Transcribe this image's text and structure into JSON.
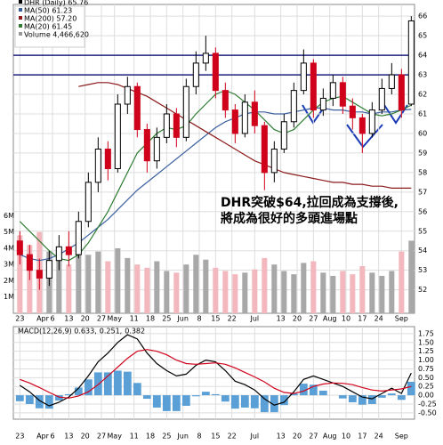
{
  "chart_data": [
    {
      "type": "candlestick",
      "legend": [
        {
          "text": "DHR (Daily) 65.76",
          "color": "#000000"
        },
        {
          "text": "MA(50) 61.23",
          "color": "#3a5fa0"
        },
        {
          "text": "MA(200) 57.20",
          "color": "#8b1a1a"
        },
        {
          "text": "MA(20) 61.45",
          "color": "#2e7d32"
        },
        {
          "text": "Volume 4,466,620",
          "color": "#999999"
        }
      ],
      "annotation": [
        "DHR突破$64,拉回成為支撐後,",
        "將成為很好的多頭進場點"
      ],
      "annotation_color": "#1a3bb5",
      "x": [
        0,
        3,
        6,
        9,
        12,
        15,
        18,
        21,
        24,
        27,
        30,
        33,
        36,
        39,
        42,
        45,
        48,
        51,
        54,
        57,
        60,
        63,
        66,
        69,
        72,
        75,
        78,
        81,
        84,
        87,
        90,
        93,
        96,
        99,
        102,
        105,
        108,
        111,
        114,
        117,
        120
      ],
      "open": [
        54.5,
        53.8,
        53,
        52.6,
        53.5,
        54.2,
        53.8,
        55.5,
        57.5,
        59.2,
        58.2,
        61.5,
        62.4,
        60.2,
        58.6,
        59.8,
        61,
        59.8,
        62.4,
        63.6,
        64.1,
        62.2,
        61.2,
        60,
        61.6,
        60.4,
        58,
        59.2,
        60.6,
        62.2,
        63.6,
        61.2,
        61.8,
        62.6,
        61.4,
        60.8,
        60,
        61.2,
        62.3,
        63,
        61.5
      ],
      "high": [
        55,
        54.3,
        53.6,
        54,
        54.8,
        55,
        56,
        58,
        59.8,
        59.6,
        62,
        62.9,
        62.6,
        60.5,
        60.3,
        61.5,
        61.3,
        62.8,
        64.2,
        65,
        64.4,
        62.6,
        61.5,
        62,
        62.2,
        60.6,
        59.6,
        61,
        62.6,
        64.3,
        63.8,
        62.3,
        63,
        62.9,
        61.8,
        61,
        61.6,
        62.8,
        63.6,
        63.3,
        66
      ],
      "low": [
        53.3,
        52.5,
        52,
        52.2,
        53,
        53.2,
        53.6,
        55.2,
        57,
        57.6,
        58,
        61,
        59.8,
        58,
        58.2,
        59.5,
        59.3,
        59.6,
        62,
        63.2,
        61.8,
        60.8,
        59.5,
        59.8,
        60,
        57.1,
        57.5,
        59,
        60.3,
        62,
        60.8,
        60.9,
        61.4,
        61,
        60.2,
        59,
        59.8,
        61,
        62,
        60.8,
        61.4
      ],
      "close": [
        53.8,
        53,
        52.6,
        53.5,
        54.2,
        53.8,
        55.5,
        57.5,
        59.2,
        58.2,
        61.5,
        62.4,
        60.2,
        58.6,
        59.8,
        61,
        59.8,
        62.4,
        63.6,
        64.1,
        62.2,
        61.2,
        60,
        61.6,
        60.4,
        58,
        59.2,
        60.6,
        62.2,
        63.6,
        61.2,
        61.8,
        62.6,
        61.4,
        60.8,
        60,
        61.2,
        62.3,
        63,
        61.2,
        65.76
      ],
      "volume": [
        4800000,
        4200000,
        5000000,
        3800000,
        3500000,
        3000000,
        4500000,
        3600000,
        3800000,
        3200000,
        4000000,
        3400000,
        3000000,
        2800000,
        3200000,
        2600000,
        2500000,
        3000000,
        3600000,
        3300000,
        2800000,
        2600000,
        2400000,
        2500000,
        2700000,
        3400000,
        3000000,
        2600000,
        2400000,
        3100000,
        3200000,
        2500000,
        2300000,
        2600000,
        2400000,
        2900000,
        2500000,
        2300000,
        2600000,
        3800000,
        4466620
      ],
      "series": [
        {
          "name": "MA(50)",
          "color": "#3a5fa0",
          "values": [
            53.8,
            53.6,
            53.5,
            53.6,
            53.8,
            54.1,
            54.4,
            54.8,
            55.2,
            55.6,
            56.1,
            56.6,
            57.1,
            57.5,
            57.9,
            58.3,
            58.7,
            59.1,
            59.5,
            59.9,
            60.3,
            60.6,
            60.8,
            61.0,
            61.1,
            61.1,
            61.0,
            61.0,
            61.1,
            61.2,
            61.3,
            61.3,
            61.2,
            61.2,
            61.1,
            61.1,
            61.0,
            61.1,
            61.1,
            61.2,
            61.23
          ]
        },
        {
          "name": "MA(200)",
          "color": "#8b1a1a",
          "values": [
            null,
            null,
            null,
            null,
            null,
            null,
            62.4,
            62.5,
            62.6,
            62.6,
            62.5,
            62.3,
            62.1,
            61.9,
            61.6,
            61.3,
            61.0,
            60.7,
            60.4,
            60.1,
            59.8,
            59.5,
            59.2,
            58.9,
            58.6,
            58.4,
            58.2,
            58.0,
            57.9,
            57.8,
            57.7,
            57.6,
            57.5,
            57.5,
            57.4,
            57.4,
            57.3,
            57.3,
            57.2,
            57.2,
            57.2
          ]
        },
        {
          "name": "MA(20)",
          "color": "#2e7d32",
          "values": [
            55.5,
            55,
            54.5,
            54,
            53.6,
            53.5,
            53.8,
            54.4,
            55.2,
            56,
            57,
            58,
            59,
            59.5,
            60,
            60.3,
            60.2,
            60.4,
            61,
            61.5,
            62,
            62.2,
            62,
            61.6,
            61.2,
            60.7,
            60.2,
            60,
            60.2,
            60.7,
            61.2,
            61.6,
            61.8,
            61.9,
            61.6,
            61.3,
            61,
            60.9,
            61,
            61.2,
            61.45
          ]
        }
      ],
      "up_color": "#000000",
      "down_color": "#d0021b",
      "volume_up_color": "#a8a8a8",
      "volume_down_color": "#f2b8bd",
      "hlines": [
        64,
        63
      ],
      "hline_color": "#1a237e",
      "xlim": [
        -2,
        121
      ],
      "xticks": [
        {
          "value": 0,
          "label": "23"
        },
        {
          "value": 7,
          "label": "Apr"
        },
        {
          "value": 10,
          "label": "6"
        },
        {
          "value": 15,
          "label": "13"
        },
        {
          "value": 20,
          "label": "20"
        },
        {
          "value": 25,
          "label": "27"
        },
        {
          "value": 29,
          "label": "May"
        },
        {
          "value": 35,
          "label": "11"
        },
        {
          "value": 40,
          "label": "18"
        },
        {
          "value": 45,
          "label": "25"
        },
        {
          "value": 50,
          "label": "Jun"
        },
        {
          "value": 55,
          "label": "8"
        },
        {
          "value": 60,
          "label": "15"
        },
        {
          "value": 65,
          "label": "22"
        },
        {
          "value": 72,
          "label": "Jul"
        },
        {
          "value": 80,
          "label": "13"
        },
        {
          "value": 85,
          "label": "20"
        },
        {
          "value": 90,
          "label": "27"
        },
        {
          "value": 95,
          "label": "Aug"
        },
        {
          "value": 100,
          "label": "10"
        },
        {
          "value": 105,
          "label": "17"
        },
        {
          "value": 110,
          "label": "24"
        },
        {
          "value": 117,
          "label": "Sep"
        }
      ],
      "ylim": [
        50.8,
        66.6
      ],
      "yticks": [
        52,
        53,
        54,
        55,
        56,
        57,
        58,
        59,
        60,
        61,
        62,
        63,
        64,
        65,
        66
      ],
      "volume_ylim": [
        0,
        19000000
      ],
      "volume_ticks": [
        {
          "value": 1000000,
          "label": "1M"
        },
        {
          "value": 2000000,
          "label": "2M"
        },
        {
          "value": 3000000,
          "label": "3M"
        },
        {
          "value": 4000000,
          "label": "4M"
        },
        {
          "value": 5000000,
          "label": "5M"
        },
        {
          "value": 6000000,
          "label": "6M"
        }
      ],
      "grid": true
    },
    {
      "type": "macd",
      "legend": [
        {
          "text": "MACD(12,26,9) 0.633,",
          "color": "#000000"
        },
        {
          "text": "0.251,",
          "color": "#d0021b"
        },
        {
          "text": "0.382",
          "color": "#1e73be"
        }
      ],
      "x": [
        0,
        3,
        6,
        9,
        12,
        15,
        18,
        21,
        24,
        27,
        30,
        33,
        36,
        39,
        42,
        45,
        48,
        51,
        54,
        57,
        60,
        63,
        66,
        69,
        72,
        75,
        78,
        81,
        84,
        87,
        90,
        93,
        96,
        99,
        102,
        105,
        108,
        111,
        114,
        117,
        120
      ],
      "series": [
        {
          "name": "MACD",
          "color": "#000000",
          "values": [
            0.28,
            0.1,
            -0.15,
            -0.3,
            -0.2,
            -0.05,
            0.2,
            0.55,
            0.95,
            1.2,
            1.5,
            1.72,
            1.6,
            1.2,
            0.9,
            0.7,
            0.55,
            0.6,
            0.85,
            1.0,
            0.95,
            0.7,
            0.4,
            0.3,
            0.15,
            -0.1,
            -0.28,
            -0.2,
            0.1,
            0.45,
            0.55,
            0.45,
            0.35,
            0.25,
            0.1,
            -0.05,
            -0.1,
            0.05,
            0.2,
            0.05,
            0.633
          ]
        },
        {
          "name": "Signal",
          "color": "#d0021b",
          "values": [
            0.45,
            0.35,
            0.22,
            0.08,
            -0.05,
            -0.08,
            -0.02,
            0.1,
            0.3,
            0.55,
            0.8,
            1.05,
            1.25,
            1.3,
            1.25,
            1.15,
            1.0,
            0.9,
            0.88,
            0.9,
            0.92,
            0.88,
            0.78,
            0.65,
            0.52,
            0.38,
            0.2,
            0.08,
            0.05,
            0.12,
            0.25,
            0.32,
            0.35,
            0.34,
            0.3,
            0.22,
            0.15,
            0.12,
            0.15,
            0.18,
            0.251
          ]
        }
      ],
      "histogram": [
        -0.17,
        -0.25,
        -0.37,
        -0.38,
        -0.15,
        0.03,
        0.22,
        0.45,
        0.65,
        0.65,
        0.7,
        0.67,
        0.35,
        -0.1,
        -0.35,
        -0.45,
        -0.45,
        -0.3,
        -0.03,
        0.1,
        0.03,
        -0.18,
        -0.38,
        -0.35,
        -0.37,
        -0.48,
        -0.48,
        -0.28,
        0.05,
        0.33,
        0.3,
        0.13,
        0,
        -0.09,
        -0.2,
        -0.27,
        -0.25,
        -0.07,
        0.05,
        -0.13,
        0.382
      ],
      "histogram_color": "#5aa0d6",
      "xlim": [
        -2,
        121
      ],
      "xticks": [
        {
          "value": 0,
          "label": "23"
        },
        {
          "value": 7,
          "label": "Apr"
        },
        {
          "value": 10,
          "label": "6"
        },
        {
          "value": 15,
          "label": "13"
        },
        {
          "value": 20,
          "label": "20"
        },
        {
          "value": 25,
          "label": "27"
        },
        {
          "value": 29,
          "label": "May"
        },
        {
          "value": 35,
          "label": "11"
        },
        {
          "value": 40,
          "label": "18"
        },
        {
          "value": 45,
          "label": "25"
        },
        {
          "value": 50,
          "label": "Jun"
        },
        {
          "value": 55,
          "label": "8"
        },
        {
          "value": 60,
          "label": "15"
        },
        {
          "value": 65,
          "label": "22"
        },
        {
          "value": 72,
          "label": "Jul"
        },
        {
          "value": 80,
          "label": "13"
        },
        {
          "value": 85,
          "label": "20"
        },
        {
          "value": 90,
          "label": "27"
        },
        {
          "value": 95,
          "label": "Aug"
        },
        {
          "value": 100,
          "label": "10"
        },
        {
          "value": 105,
          "label": "17"
        },
        {
          "value": 110,
          "label": "24"
        },
        {
          "value": 117,
          "label": "Sep"
        }
      ],
      "ylim": [
        -0.68,
        1.95
      ],
      "yticks": [
        {
          "value": 1.75,
          "label": "1.75"
        },
        {
          "value": 1.5,
          "label": "1.50"
        },
        {
          "value": 1.25,
          "label": "1.25"
        },
        {
          "value": 1,
          "label": "1.00"
        },
        {
          "value": 0.75,
          "label": "0.75"
        },
        {
          "value": 0.5,
          "label": "0.50"
        },
        {
          "value": 0.25,
          "label": "0.25"
        },
        {
          "value": 0,
          "label": "0.00"
        },
        {
          "value": -0.25,
          "label": "-0.25"
        },
        {
          "value": -0.5,
          "label": "-0.50"
        }
      ],
      "grid": true
    }
  ]
}
